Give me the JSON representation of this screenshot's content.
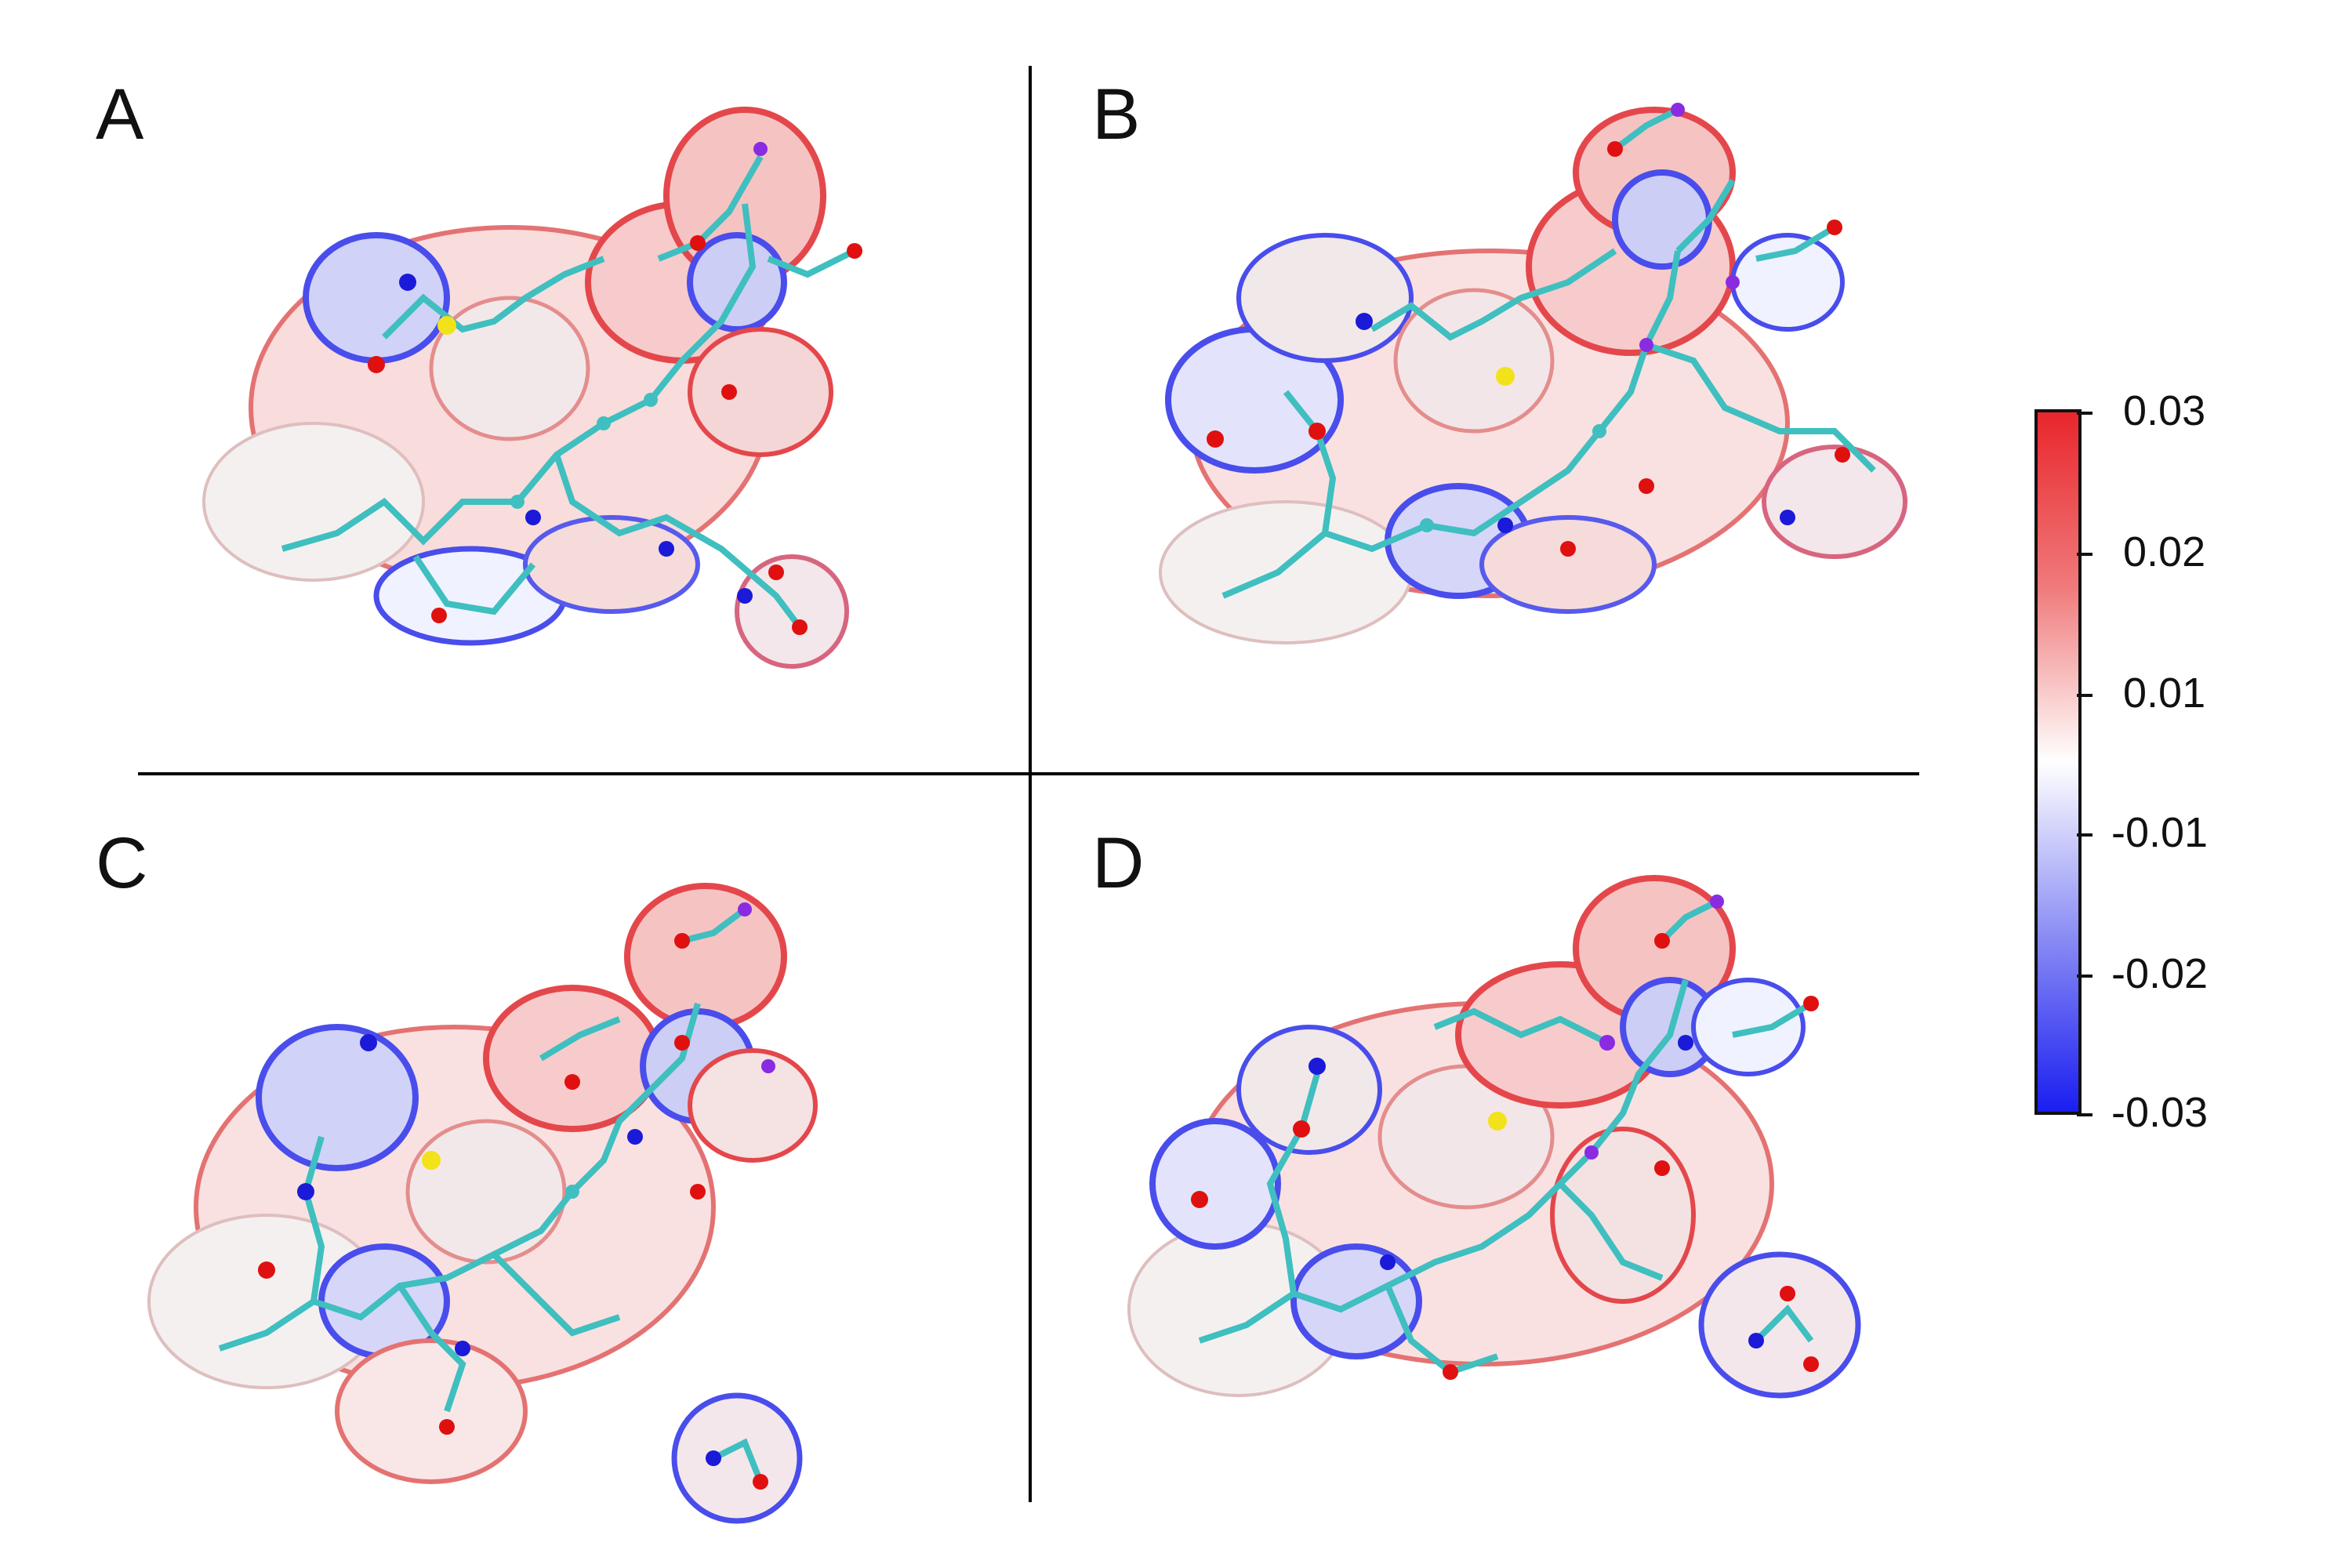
{
  "panels": [
    {
      "label": "A"
    },
    {
      "label": "B"
    },
    {
      "label": "C"
    },
    {
      "label": "D"
    }
  ],
  "colorbar": {
    "ticks": [
      "0.03",
      "0.02",
      "0.01",
      "-0.01",
      "-0.02",
      "-0.03"
    ],
    "colors": {
      "positive": "#e8262c",
      "neutral": "#ffffff",
      "negative": "#1a1ef0"
    }
  },
  "atom_colors": {
    "carbon": "#3fbfbf",
    "oxygen": "#e01010",
    "nitrogen": "#1a1ad8",
    "sulfur": "#f2e21a",
    "hydrogen": "#e8e8e8",
    "other": "#8a2be2"
  }
}
